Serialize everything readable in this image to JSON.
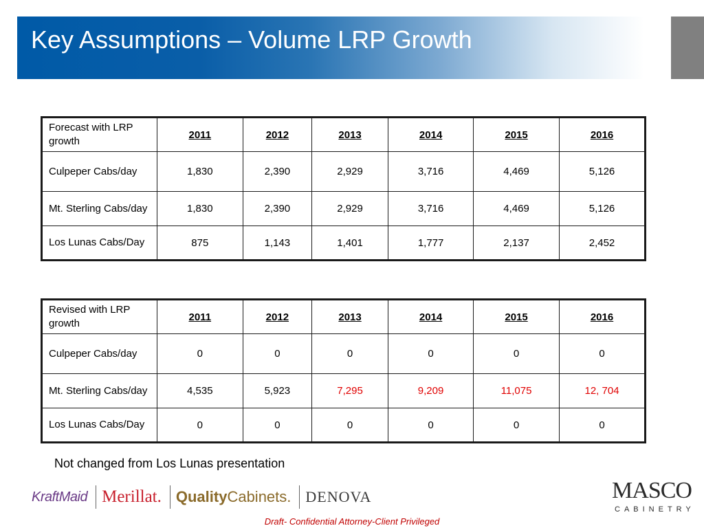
{
  "slide": {
    "title": "Key Assumptions – Volume LRP Growth",
    "note": "Not changed from Los Lunas presentation",
    "footer": "Draft- Confidential  Attorney-Client Privileged"
  },
  "table_forecast": {
    "header_label": "Forecast with LRP growth",
    "years": [
      "2011",
      "2012",
      "2013",
      "2014",
      "2015",
      "2016"
    ],
    "rows": [
      {
        "label": "Culpeper Cabs/day",
        "values": [
          "1,830",
          "2,390",
          "2,929",
          "3,716",
          "4,469",
          "5,126"
        ]
      },
      {
        "label": "Mt. Sterling Cabs/day",
        "values": [
          "1,830",
          "2,390",
          "2,929",
          "3,716",
          "4,469",
          "5,126"
        ]
      },
      {
        "label": "Los Lunas Cabs/Day",
        "values": [
          "875",
          "1,143",
          "1,401",
          "1,777",
          "2,137",
          "2,452"
        ]
      }
    ]
  },
  "table_revised": {
    "header_label": "Revised with LRP growth",
    "years": [
      "2011",
      "2012",
      "2013",
      "2014",
      "2015",
      "2016"
    ],
    "rows": [
      {
        "label": "Culpeper Cabs/day",
        "values": [
          "0",
          "0",
          "0",
          "0",
          "0",
          "0"
        ]
      },
      {
        "label": "Mt. Sterling Cabs/day",
        "values": [
          "4,535",
          "5,923",
          "7,295",
          "9,209",
          "11,075",
          "12, 704"
        ]
      },
      {
        "label": "Los Lunas Cabs/Day",
        "values": [
          "0",
          "0",
          "0",
          "0",
          "0",
          "0"
        ]
      }
    ],
    "highlight_color": "#e00000"
  },
  "brands": {
    "kraftmaid": "KraftMaid",
    "merillat": "Merillat.",
    "quality_bold": "Quality",
    "quality_rest": "Cabinets.",
    "denova": "DENOVA",
    "masco": "MASCO",
    "masco_sub": "CABINETRY"
  }
}
